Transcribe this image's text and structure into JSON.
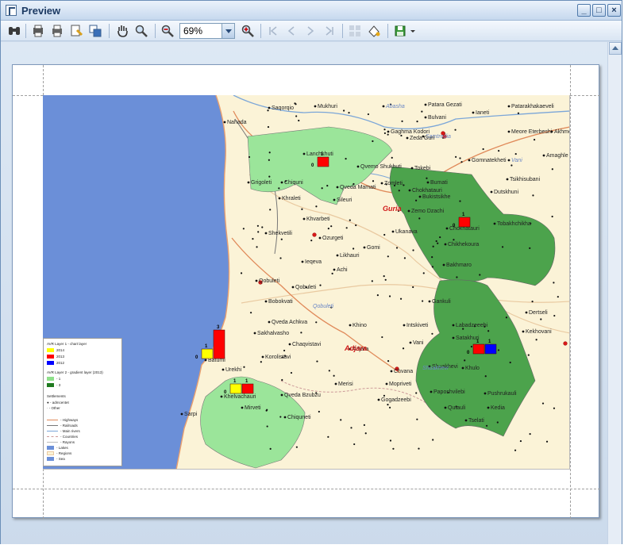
{
  "window": {
    "title": "Preview"
  },
  "toolbar": {
    "zoom_value": "69%"
  },
  "map": {
    "settlements": [
      "Saqorqio",
      "Mukhuri",
      "Patara Gezati",
      "Ianeti",
      "Nahada",
      "Abasha",
      "Bulvani",
      "Akhmeta",
      "Patarakhakaeveli",
      "Gaghma Kodori",
      "Samtredia",
      "Meore Eterbeshi",
      "Lanchkhuti",
      "Qvemo Shukhuti",
      "Zeda Guri",
      "Gomnatekheti",
      "Vani",
      "Amaghle",
      "Grigoleti",
      "Chiquni",
      "Qveda Mamati",
      "Tokebi",
      "Bumati",
      "Tsikhisubani",
      "Khraleti",
      "Sileuri",
      "Zomleti",
      "Chokhatauri",
      "Bukistsikhe",
      "Dutskhuni",
      "Zemo Dzachi",
      "Chokhatauri",
      "Tobakhchikha",
      "Shekvetili",
      "Khvarbeti",
      "Ozurgeti",
      "Ukanava",
      "Gomi",
      "Likhauri",
      "Chikhekoura",
      "Ieqeva",
      "Achi",
      "Bakhmaro",
      "Qobuleti",
      "Gankuli",
      "Dertseli",
      "Bobokvati",
      "Qobuleti",
      "Qveda Achkva",
      "Labadzeeebi",
      "Khino",
      "Intskiveti",
      "Kekhovani",
      "Sakhalvasho",
      "Chaqvistavi",
      "Vani",
      "Satakhuri",
      "Korolistavi",
      "Adjara",
      "Batumi",
      "Shuakhevi",
      "Khulo",
      "Urekhi",
      "Chvana",
      "Merisi",
      "Qveda Bzubzu",
      "Mopriveti",
      "Paposhvilebi",
      "Pushrukauli",
      "Khelvachauri",
      "Gogadzeebi",
      "Mirveti",
      "Qutauli",
      "Kedia",
      "Sarpi",
      "Chiquneti",
      "Tselati"
    ],
    "regions": [
      "Guria",
      "Adjara",
      "Qobuleti",
      "Shuakhevi"
    ],
    "chart_values": [
      "1",
      "0",
      "0",
      "1",
      "0",
      "0",
      "3",
      "1",
      "0",
      "1",
      "1",
      "0",
      "0",
      "1",
      "0",
      "1"
    ]
  },
  "legend": {
    "chart_title": "AVR Layer 1 - chart layer",
    "items_chart": [
      {
        "label": "2014",
        "color": "#ffff00"
      },
      {
        "label": "2013",
        "color": "#ff0000"
      },
      {
        "label": "2012",
        "color": "#0000ff"
      }
    ],
    "gradient_title": "AVR Layer 2 - gradient layer (2013)",
    "items_gradient": [
      {
        "label": "- 1",
        "color": "#8ee08a"
      },
      {
        "label": "- 3",
        "color": "#1f7a1f"
      }
    ],
    "settlements_title": "Settlements",
    "settlement_items": [
      "- admcentet",
      "- Other"
    ],
    "line_items": [
      {
        "label": "- Highways",
        "color": "#e08a5a"
      },
      {
        "label": "- Railroads",
        "color": "#777777"
      },
      {
        "label": "- Main rivers",
        "color": "#7ba6d8"
      },
      {
        "label": "- Countries",
        "color": "#cc9999"
      },
      {
        "label": "- Rayons",
        "color": "#bbbbbb"
      },
      {
        "label": "- Lakes",
        "color": "#6b8fd8"
      },
      {
        "label": "- Regions",
        "color": "#e9c9a0"
      },
      {
        "label": "- Sea",
        "color": "#6b8fd8"
      }
    ]
  }
}
